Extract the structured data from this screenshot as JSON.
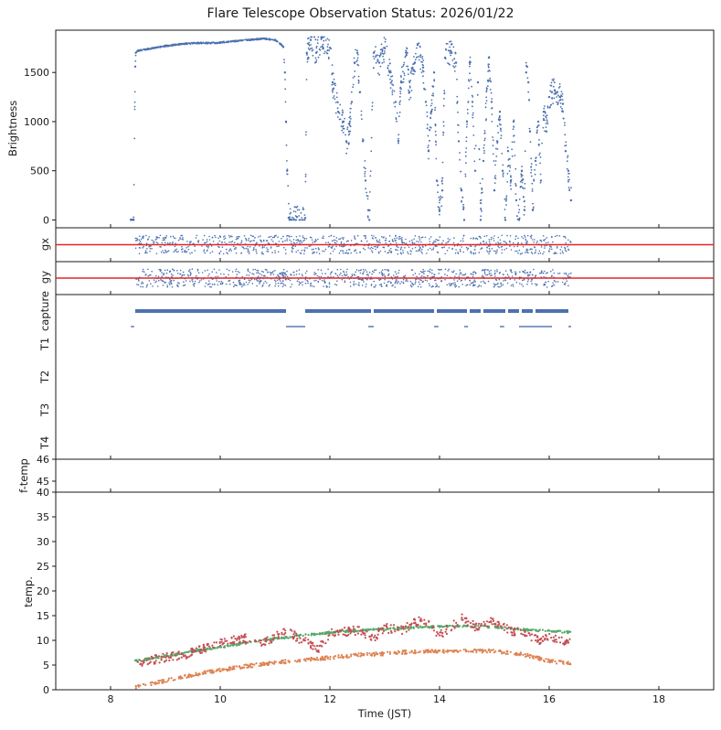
{
  "figure": {
    "title": "Flare Telescope Observation Status: 2026/01/22",
    "xlabel": "Time (JST)"
  },
  "colors": {
    "blue": "#4c72b0",
    "orange": "#dd8452",
    "green": "#55a868",
    "red": "#c44e52",
    "refline": "#e32626",
    "axis": "#1a1a1a"
  },
  "chart_data": [
    {
      "id": "brightness",
      "type": "scatter",
      "ylabel": "Brightness",
      "xlim": [
        7,
        19
      ],
      "ylim": [
        -80,
        1930
      ],
      "yticks": [
        0,
        500,
        1000,
        1500
      ],
      "series": [
        {
          "color": "blue",
          "points": [
            [
              8.37,
              0
            ],
            [
              8.42,
              0
            ],
            [
              8.45,
              1560
            ],
            [
              8.46,
              1700
            ],
            [
              8.5,
              1720
            ],
            [
              8.7,
              1740
            ],
            [
              9.0,
              1770
            ],
            [
              9.3,
              1790
            ],
            [
              9.6,
              1800
            ],
            [
              9.9,
              1800
            ],
            [
              10.2,
              1815
            ],
            [
              10.5,
              1830
            ],
            [
              10.8,
              1845
            ],
            [
              11.0,
              1830
            ],
            [
              11.1,
              1790
            ],
            [
              11.15,
              1760
            ],
            [
              11.18,
              1500
            ],
            [
              11.2,
              1000
            ],
            [
              11.22,
              500
            ],
            [
              11.25,
              20
            ],
            [
              11.4,
              30
            ],
            [
              11.55,
              20
            ],
            [
              11.58,
              1700
            ],
            [
              11.65,
              1830
            ],
            [
              11.75,
              1700
            ],
            [
              11.85,
              1850
            ],
            [
              12.0,
              1750
            ],
            [
              12.05,
              1400
            ],
            [
              12.15,
              1100
            ],
            [
              12.25,
              1000
            ],
            [
              12.3,
              800
            ],
            [
              12.35,
              900
            ],
            [
              12.4,
              1200
            ],
            [
              12.45,
              1600
            ],
            [
              12.5,
              1700
            ],
            [
              12.55,
              1300
            ],
            [
              12.6,
              800
            ],
            [
              12.65,
              400
            ],
            [
              12.7,
              100
            ],
            [
              12.72,
              0
            ],
            [
              12.8,
              1700
            ],
            [
              12.9,
              1600
            ],
            [
              13.0,
              1750
            ],
            [
              13.1,
              1500
            ],
            [
              13.2,
              1200
            ],
            [
              13.25,
              800
            ],
            [
              13.3,
              1400
            ],
            [
              13.4,
              1700
            ],
            [
              13.45,
              1300
            ],
            [
              13.55,
              1600
            ],
            [
              13.6,
              1780
            ],
            [
              13.7,
              1550
            ],
            [
              13.75,
              1200
            ],
            [
              13.8,
              700
            ],
            [
              13.85,
              1100
            ],
            [
              13.9,
              1500
            ],
            [
              13.95,
              400
            ],
            [
              14.0,
              100
            ],
            [
              14.05,
              300
            ],
            [
              14.1,
              1650
            ],
            [
              14.2,
              1720
            ],
            [
              14.3,
              1600
            ],
            [
              14.35,
              800
            ],
            [
              14.4,
              300
            ],
            [
              14.45,
              0
            ],
            [
              14.5,
              1000
            ],
            [
              14.55,
              1600
            ],
            [
              14.6,
              1200
            ],
            [
              14.65,
              500
            ],
            [
              14.7,
              1400
            ],
            [
              14.75,
              0
            ],
            [
              14.8,
              600
            ],
            [
              14.9,
              1650
            ],
            [
              14.95,
              1200
            ],
            [
              15.0,
              300
            ],
            [
              15.05,
              800
            ],
            [
              15.1,
              1100
            ],
            [
              15.15,
              500
            ],
            [
              15.2,
              0
            ],
            [
              15.25,
              700
            ],
            [
              15.3,
              400
            ],
            [
              15.35,
              1000
            ],
            [
              15.4,
              200
            ],
            [
              15.45,
              0
            ],
            [
              15.5,
              500
            ],
            [
              15.55,
              100
            ],
            [
              15.58,
              1500
            ],
            [
              15.62,
              1400
            ],
            [
              15.65,
              900
            ],
            [
              15.7,
              100
            ],
            [
              15.75,
              600
            ],
            [
              15.8,
              1000
            ],
            [
              15.85,
              400
            ],
            [
              15.9,
              1100
            ],
            [
              15.95,
              900
            ],
            [
              16.0,
              1250
            ],
            [
              16.05,
              1300
            ],
            [
              16.1,
              1320
            ],
            [
              16.15,
              1300
            ],
            [
              16.2,
              1250
            ],
            [
              16.25,
              1180
            ],
            [
              16.3,
              700
            ],
            [
              16.35,
              500
            ],
            [
              16.4,
              200
            ]
          ]
        }
      ]
    },
    {
      "id": "gx",
      "type": "scatter",
      "ylabel": "gx",
      "xlim": [
        7,
        19
      ],
      "ylim": [
        -1,
        1
      ],
      "reference_y": 0,
      "series": [
        {
          "color": "blue",
          "x_range": [
            8.45,
            16.4
          ],
          "y_center": 0,
          "y_spread": 0.55
        }
      ]
    },
    {
      "id": "gy",
      "type": "scatter",
      "ylabel": "gy",
      "xlim": [
        7,
        19
      ],
      "ylim": [
        -1,
        1
      ],
      "reference_y": 0,
      "series": [
        {
          "color": "blue",
          "x_range": [
            8.45,
            16.4
          ],
          "y_center": 0,
          "y_spread": 0.55
        }
      ]
    },
    {
      "id": "status",
      "type": "timeline",
      "xlim": [
        7,
        19
      ],
      "rows": [
        "capture",
        "T1",
        "T2",
        "T3",
        "T4"
      ],
      "capture_segments": [
        [
          8.45,
          11.2
        ],
        [
          11.55,
          12.75
        ],
        [
          12.8,
          13.9
        ],
        [
          13.95,
          14.5
        ],
        [
          14.55,
          14.75
        ],
        [
          14.8,
          15.2
        ],
        [
          15.25,
          15.45
        ],
        [
          15.5,
          15.7
        ],
        [
          15.75,
          16.35
        ]
      ],
      "T1_segments": [
        [
          8.37,
          8.43
        ],
        [
          11.2,
          11.55
        ],
        [
          12.7,
          12.8
        ],
        [
          13.9,
          13.98
        ],
        [
          14.45,
          14.52
        ],
        [
          15.1,
          15.18
        ],
        [
          15.45,
          16.05
        ],
        [
          16.35,
          16.4
        ]
      ]
    },
    {
      "id": "f-temp",
      "type": "scatter",
      "ylabel": "f-temp",
      "xlim": [
        7,
        19
      ],
      "ylim": [
        44.5,
        46
      ],
      "yticks": [
        45,
        46
      ],
      "series": []
    },
    {
      "id": "temp",
      "type": "scatter",
      "ylabel": "temp.",
      "xlim": [
        7,
        19
      ],
      "ylim": [
        0,
        40
      ],
      "yticks": [
        0,
        5,
        10,
        15,
        20,
        25,
        30,
        35,
        40
      ],
      "xticks": [
        8,
        10,
        12,
        14,
        16,
        18
      ],
      "series": [
        {
          "color": "green",
          "points": [
            [
              8.45,
              5.8
            ],
            [
              9.0,
              6.8
            ],
            [
              9.5,
              7.8
            ],
            [
              10.0,
              8.6
            ],
            [
              10.5,
              9.5
            ],
            [
              11.0,
              10.3
            ],
            [
              11.5,
              11.0
            ],
            [
              12.0,
              11.6
            ],
            [
              12.5,
              12.0
            ],
            [
              13.0,
              12.3
            ],
            [
              13.5,
              12.6
            ],
            [
              14.0,
              12.8
            ],
            [
              14.5,
              12.9
            ],
            [
              15.0,
              12.7
            ],
            [
              15.5,
              12.2
            ],
            [
              16.0,
              11.9
            ],
            [
              16.4,
              11.6
            ]
          ]
        },
        {
          "color": "red",
          "points": [
            [
              8.45,
              5.5
            ],
            [
              9.0,
              6.5
            ],
            [
              9.5,
              7.5
            ],
            [
              10.0,
              9.5
            ],
            [
              10.4,
              10.5
            ],
            [
              10.8,
              9.5
            ],
            [
              11.2,
              12.0
            ],
            [
              11.5,
              10.0
            ],
            [
              11.8,
              8.5
            ],
            [
              12.0,
              11.5
            ],
            [
              12.5,
              12.0
            ],
            [
              12.8,
              10.5
            ],
            [
              13.0,
              12.5
            ],
            [
              13.3,
              12.0
            ],
            [
              13.6,
              14.0
            ],
            [
              13.8,
              13.5
            ],
            [
              14.0,
              11.0
            ],
            [
              14.3,
              13.5
            ],
            [
              14.4,
              14.5
            ],
            [
              14.7,
              12.5
            ],
            [
              15.0,
              14.0
            ],
            [
              15.3,
              12.0
            ],
            [
              15.6,
              11.0
            ],
            [
              15.8,
              10.0
            ],
            [
              16.0,
              10.5
            ],
            [
              16.2,
              10.0
            ],
            [
              16.4,
              9.8
            ]
          ]
        },
        {
          "color": "orange",
          "points": [
            [
              8.45,
              0.5
            ],
            [
              9.0,
              1.8
            ],
            [
              9.5,
              3.0
            ],
            [
              10.0,
              4.0
            ],
            [
              10.5,
              4.8
            ],
            [
              11.0,
              5.5
            ],
            [
              11.5,
              6.0
            ],
            [
              12.0,
              6.5
            ],
            [
              12.5,
              7.0
            ],
            [
              13.0,
              7.3
            ],
            [
              13.5,
              7.7
            ],
            [
              14.0,
              7.8
            ],
            [
              14.5,
              7.9
            ],
            [
              15.0,
              7.8
            ],
            [
              15.5,
              7.2
            ],
            [
              16.0,
              5.8
            ],
            [
              16.4,
              5.3
            ]
          ]
        }
      ]
    }
  ]
}
